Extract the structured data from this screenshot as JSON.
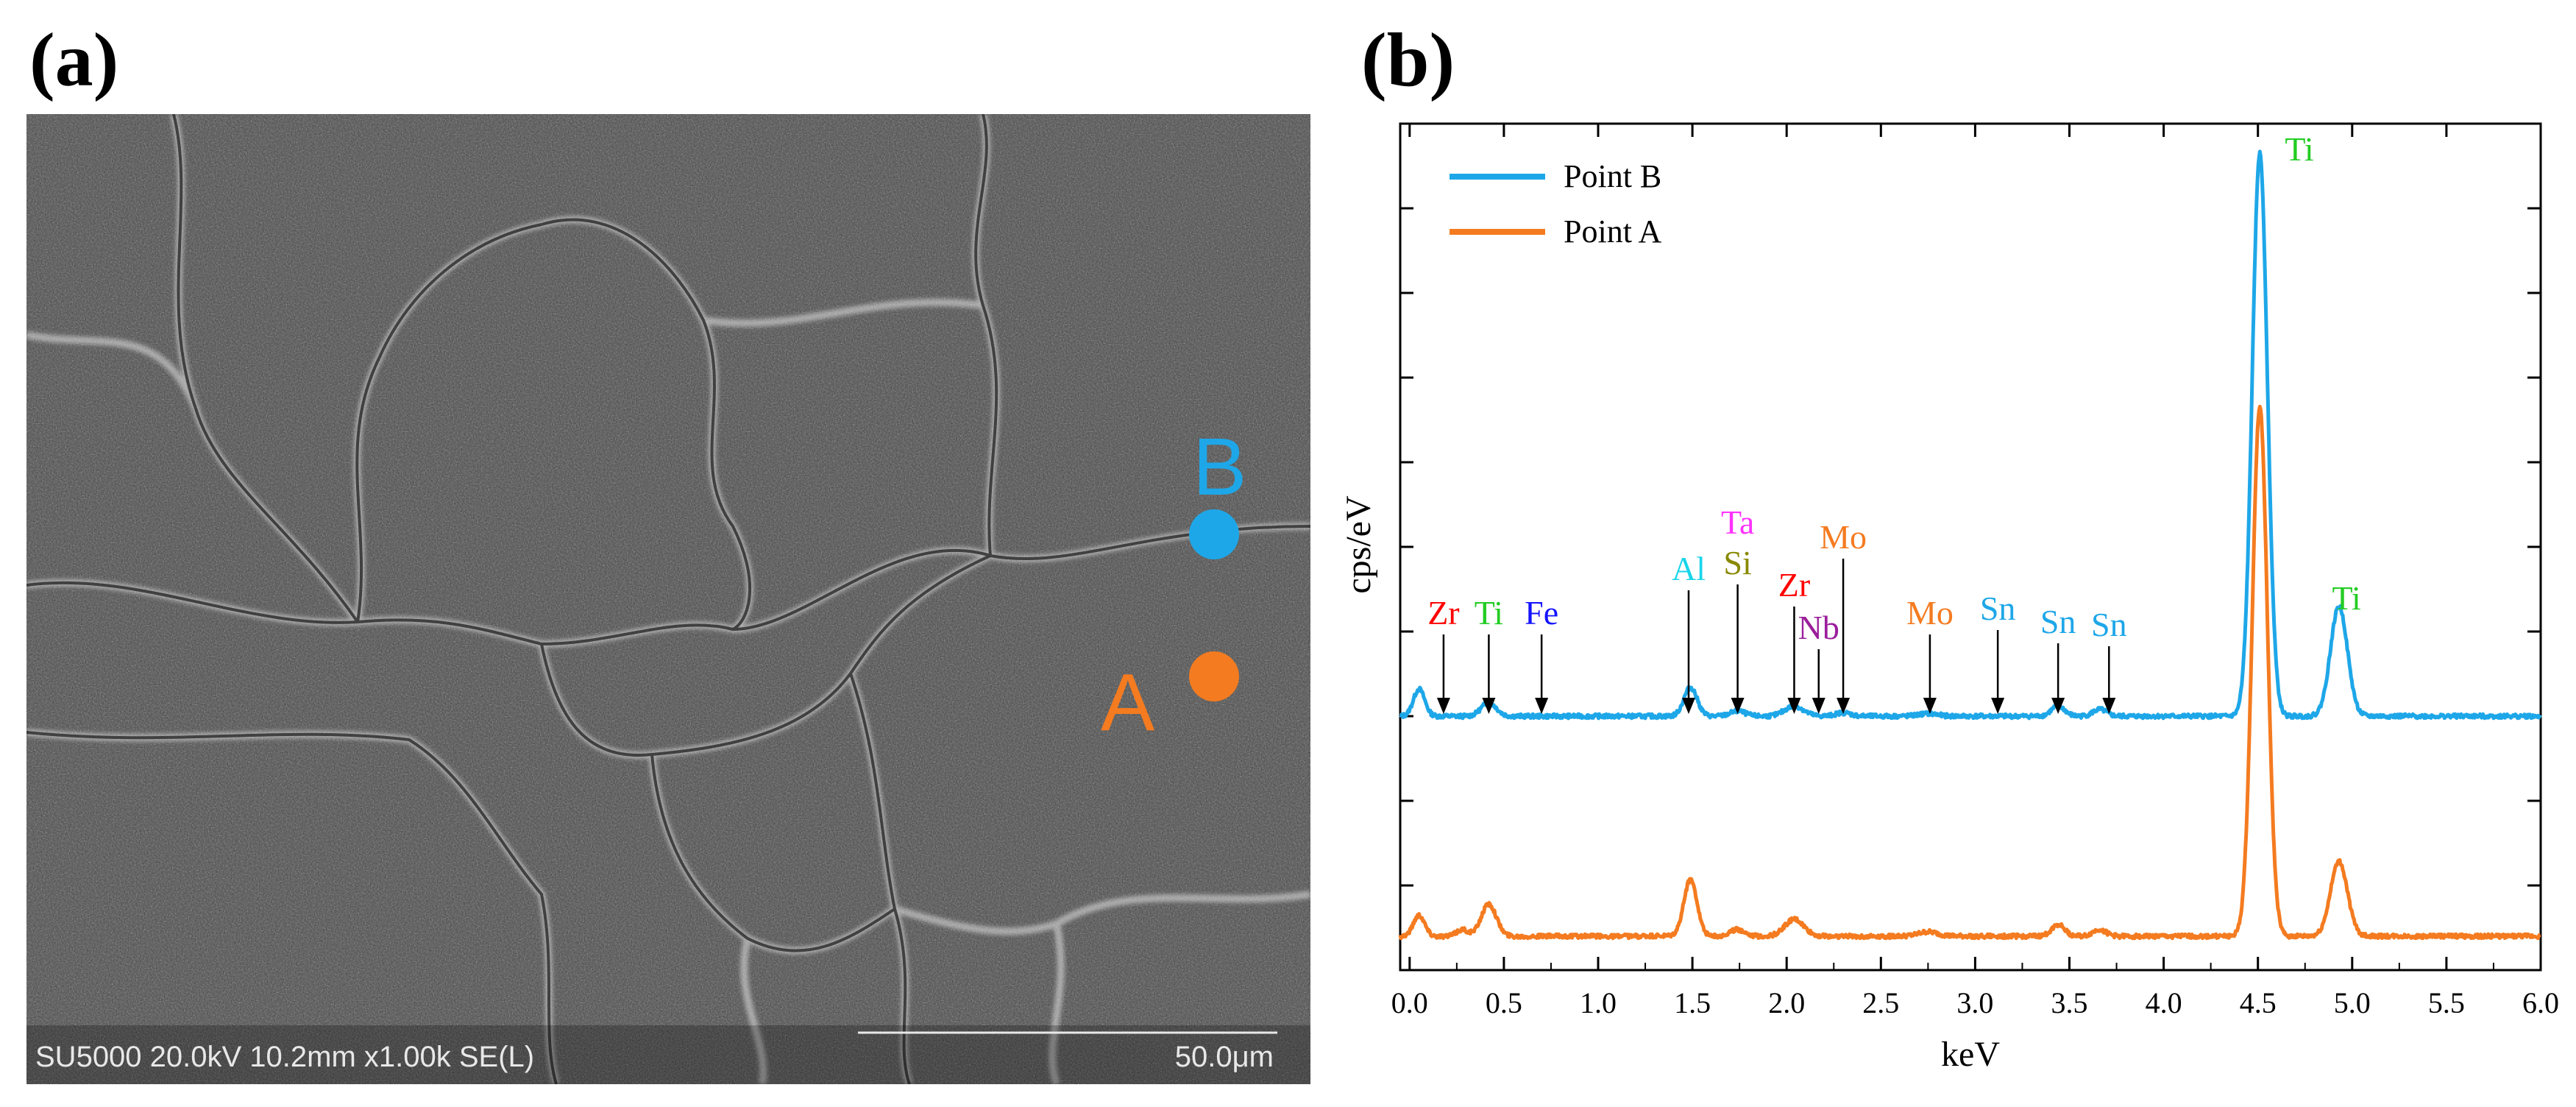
{
  "panels": {
    "a": "(a)",
    "b": "(b)"
  },
  "sem": {
    "info": "SU5000 20.0kV 10.2mm x1.00k SE(L)",
    "scale_bar": "50.0μm",
    "points": [
      {
        "label": "B",
        "color": "#1ea7e8"
      },
      {
        "label": "A",
        "color": "#f47b20"
      }
    ]
  },
  "chart_data": {
    "type": "line",
    "title": "",
    "xlabel": "keV",
    "ylabel": "cps/eV",
    "xlim": [
      -0.05,
      6.0
    ],
    "ylim": [
      0,
      100
    ],
    "x_ticks": [
      "0.0",
      "0.5",
      "1.0",
      "1.5",
      "2.0",
      "2.5",
      "3.0",
      "3.5",
      "4.0",
      "4.5",
      "5.0",
      "5.5",
      "6.0"
    ],
    "x_tick_values": [
      0.0,
      0.5,
      1.0,
      1.5,
      2.0,
      2.5,
      3.0,
      3.5,
      4.0,
      4.5,
      5.0,
      5.5,
      6.0
    ],
    "legend_position": "top-left",
    "series": [
      {
        "name": "Point B",
        "color": "#1ea7e8",
        "baseline": 30,
        "noise": 0.25,
        "peaks": [
          [
            0.05,
            3.2,
            0.03
          ],
          [
            0.42,
            1.6,
            0.04
          ],
          [
            1.49,
            3.4,
            0.035
          ],
          [
            1.74,
            0.6,
            0.04
          ],
          [
            2.04,
            1.2,
            0.05
          ],
          [
            2.3,
            0.4,
            0.04
          ],
          [
            2.75,
            0.3,
            0.05
          ],
          [
            3.44,
            1.2,
            0.035
          ],
          [
            3.66,
            0.8,
            0.035
          ],
          [
            4.51,
            66.5,
            0.04
          ],
          [
            4.93,
            13.0,
            0.045
          ]
        ]
      },
      {
        "name": "Point A",
        "color": "#f47b20",
        "baseline": 4,
        "noise": 0.25,
        "peaks": [
          [
            0.05,
            2.5,
            0.03
          ],
          [
            0.42,
            3.8,
            0.04
          ],
          [
            0.28,
            0.8,
            0.03
          ],
          [
            1.49,
            6.7,
            0.035
          ],
          [
            1.74,
            0.8,
            0.04
          ],
          [
            2.04,
            2.0,
            0.05
          ],
          [
            2.75,
            0.5,
            0.05
          ],
          [
            3.44,
            1.4,
            0.035
          ],
          [
            3.66,
            0.8,
            0.035
          ],
          [
            4.51,
            62.5,
            0.04
          ],
          [
            4.93,
            8.8,
            0.045
          ]
        ]
      }
    ],
    "annotations": [
      {
        "text": "Zr",
        "x": 0.18,
        "color": "#ff0000",
        "arrow": true
      },
      {
        "text": "Ti",
        "x": 0.42,
        "color": "#22cc22",
        "arrow": true
      },
      {
        "text": "Fe",
        "x": 0.7,
        "color": "#1414ff",
        "arrow": true
      },
      {
        "text": "Al",
        "x": 1.48,
        "color": "#19d5ea",
        "arrow": true
      },
      {
        "text": "Si",
        "x": 1.74,
        "color": "#888800",
        "arrow": true
      },
      {
        "text": "Ta",
        "x": 1.74,
        "color": "#ff33ff",
        "arrow": false
      },
      {
        "text": "Zr",
        "x": 2.04,
        "color": "#ff0000",
        "arrow": true
      },
      {
        "text": "Nb",
        "x": 2.17,
        "color": "#9b1e9b",
        "arrow": true
      },
      {
        "text": "Mo",
        "x": 2.3,
        "color": "#f47b20",
        "arrow": true
      },
      {
        "text": "Mo",
        "x": 2.76,
        "color": "#f47b20",
        "arrow": true
      },
      {
        "text": "Sn",
        "x": 3.12,
        "color": "#1ea7e8",
        "arrow": true
      },
      {
        "text": "Sn",
        "x": 3.44,
        "color": "#1ea7e8",
        "arrow": true
      },
      {
        "text": "Sn",
        "x": 3.71,
        "color": "#1ea7e8",
        "arrow": true
      },
      {
        "text": "Ti",
        "x": 4.51,
        "color": "#22cc22",
        "arrow": false
      },
      {
        "text": "Ti",
        "x": 4.93,
        "color": "#22cc22",
        "arrow": false
      }
    ]
  }
}
